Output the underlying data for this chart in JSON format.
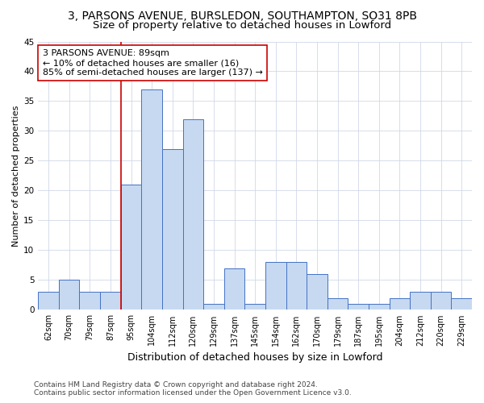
{
  "title_line1": "3, PARSONS AVENUE, BURSLEDON, SOUTHAMPTON, SO31 8PB",
  "title_line2": "Size of property relative to detached houses in Lowford",
  "xlabel": "Distribution of detached houses by size in Lowford",
  "ylabel": "Number of detached properties",
  "categories": [
    "62sqm",
    "70sqm",
    "79sqm",
    "87sqm",
    "95sqm",
    "104sqm",
    "112sqm",
    "120sqm",
    "129sqm",
    "137sqm",
    "145sqm",
    "154sqm",
    "162sqm",
    "170sqm",
    "179sqm",
    "187sqm",
    "195sqm",
    "204sqm",
    "212sqm",
    "220sqm",
    "229sqm"
  ],
  "values": [
    3,
    5,
    3,
    3,
    21,
    37,
    27,
    32,
    1,
    7,
    1,
    8,
    8,
    6,
    2,
    1,
    1,
    2,
    3,
    3,
    2
  ],
  "bar_color": "#c6d9f1",
  "bar_edge_color": "#4472c4",
  "vline_color": "#cc0000",
  "vline_x_index": 3,
  "annotation_line1": "3 PARSONS AVENUE: 89sqm",
  "annotation_line2": "← 10% of detached houses are smaller (16)",
  "annotation_line3": "85% of semi-detached houses are larger (137) →",
  "annotation_box_facecolor": "#ffffff",
  "annotation_box_edgecolor": "#cc0000",
  "ylim": [
    0,
    45
  ],
  "yticks": [
    0,
    5,
    10,
    15,
    20,
    25,
    30,
    35,
    40,
    45
  ],
  "footnote": "Contains HM Land Registry data © Crown copyright and database right 2024.\nContains public sector information licensed under the Open Government Licence v3.0.",
  "bg_color": "#ffffff",
  "grid_color": "#d0d8e8",
  "title1_fontsize": 10,
  "title2_fontsize": 9.5,
  "xlabel_fontsize": 9,
  "ylabel_fontsize": 8,
  "tick_fontsize": 7,
  "annot_fontsize": 8,
  "footnote_fontsize": 6.5
}
